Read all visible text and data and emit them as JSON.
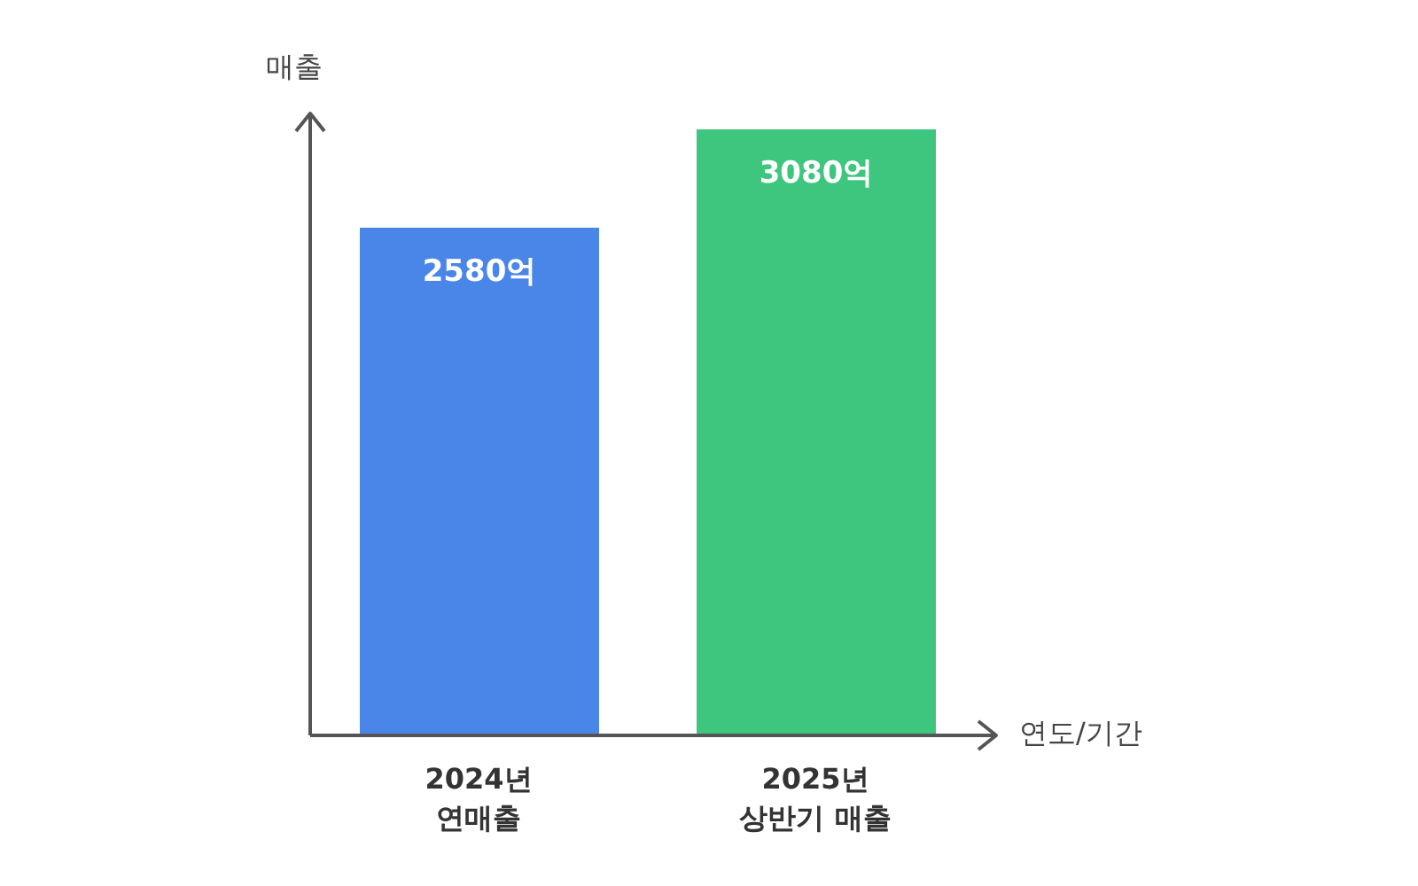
{
  "chart_data": {
    "type": "bar",
    "xlabel": "연도/기간",
    "ylabel": "매출",
    "categories": [
      "2024년 연매출",
      "2025년 상반기 매출"
    ],
    "values": [
      2580,
      3080
    ],
    "colors": [
      "#4a86e8",
      "#3ec67f"
    ],
    "value_labels": [
      "2580억",
      "3080억"
    ]
  }
}
